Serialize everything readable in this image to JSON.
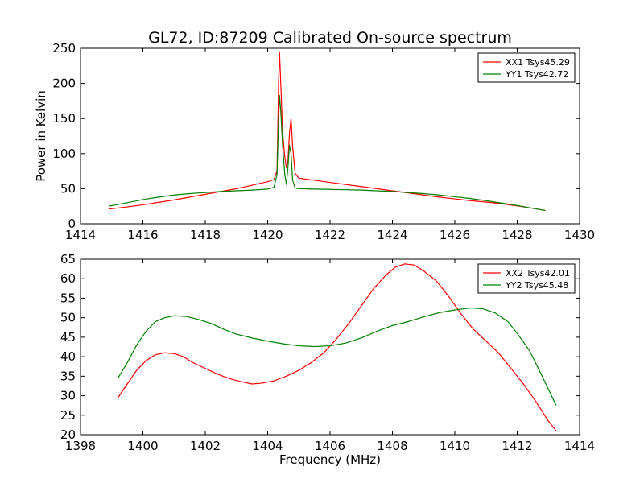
{
  "title": "GL72, ID:87209 Calibrated On-source spectrum",
  "colors": {
    "red": "#ff0000",
    "green": "#008000"
  },
  "chart_data": [
    {
      "type": "line",
      "xlabel": "",
      "ylabel": "Power in Kelvin",
      "xlim": [
        1414,
        1430
      ],
      "ylim": [
        0,
        250
      ],
      "xticks": [
        "1414",
        "1416",
        "1418",
        "1420",
        "1422",
        "1424",
        "1426",
        "1428",
        "1430"
      ],
      "yticks": [
        "0",
        "50",
        "100",
        "150",
        "200",
        "250"
      ],
      "legend_position": "top-right",
      "grid": false,
      "series": [
        {
          "name": "XX1 Tsys45.29",
          "color": "#ff0000",
          "points": [
            [
              1414.9,
              21
            ],
            [
              1415.5,
              24
            ],
            [
              1416,
              27
            ],
            [
              1416.5,
              30.5
            ],
            [
              1417,
              34
            ],
            [
              1417.5,
              38
            ],
            [
              1418,
              42
            ],
            [
              1418.5,
              46
            ],
            [
              1419,
              50
            ],
            [
              1419.5,
              55
            ],
            [
              1419.8,
              58
            ],
            [
              1420.0,
              60
            ],
            [
              1420.2,
              63
            ],
            [
              1420.3,
              75
            ],
            [
              1420.35,
              200
            ],
            [
              1420.38,
              245
            ],
            [
              1420.42,
              200
            ],
            [
              1420.48,
              130
            ],
            [
              1420.55,
              95
            ],
            [
              1420.6,
              80
            ],
            [
              1420.65,
              90
            ],
            [
              1420.7,
              130
            ],
            [
              1420.75,
              150
            ],
            [
              1420.8,
              110
            ],
            [
              1420.88,
              72
            ],
            [
              1421,
              65
            ],
            [
              1421.5,
              62
            ],
            [
              1422,
              59
            ],
            [
              1422.5,
              56
            ],
            [
              1423,
              53
            ],
            [
              1423.5,
              50
            ],
            [
              1424,
              47
            ],
            [
              1424.5,
              44
            ],
            [
              1425,
              41
            ],
            [
              1425.5,
              38
            ],
            [
              1426,
              35.5
            ],
            [
              1426.5,
              33
            ],
            [
              1427,
              31
            ],
            [
              1427.5,
              28.5
            ],
            [
              1428,
              25.5
            ],
            [
              1428.5,
              22
            ],
            [
              1428.9,
              19
            ]
          ]
        },
        {
          "name": "YY1 Tsys42.72",
          "color": "#008000",
          "points": [
            [
              1414.9,
              25
            ],
            [
              1415.5,
              30
            ],
            [
              1416,
              34.5
            ],
            [
              1416.5,
              38
            ],
            [
              1417,
              41
            ],
            [
              1417.5,
              43
            ],
            [
              1418,
              44.5
            ],
            [
              1418.5,
              46
            ],
            [
              1419,
              47
            ],
            [
              1419.5,
              48
            ],
            [
              1420.0,
              49.5
            ],
            [
              1420.2,
              52
            ],
            [
              1420.3,
              70
            ],
            [
              1420.35,
              150
            ],
            [
              1420.38,
              183
            ],
            [
              1420.42,
              160
            ],
            [
              1420.48,
              110
            ],
            [
              1420.55,
              70
            ],
            [
              1420.6,
              56
            ],
            [
              1420.65,
              80
            ],
            [
              1420.7,
              112
            ],
            [
              1420.75,
              100
            ],
            [
              1420.8,
              62
            ],
            [
              1420.88,
              51
            ],
            [
              1421,
              50
            ],
            [
              1421.5,
              49.5
            ],
            [
              1422,
              49
            ],
            [
              1422.5,
              48.5
            ],
            [
              1423,
              48
            ],
            [
              1423.5,
              47
            ],
            [
              1424,
              46
            ],
            [
              1424.5,
              44.5
            ],
            [
              1425,
              43
            ],
            [
              1425.5,
              41
            ],
            [
              1426,
              38.5
            ],
            [
              1426.5,
              36
            ],
            [
              1427,
              33
            ],
            [
              1427.5,
              29.5
            ],
            [
              1428,
              26
            ],
            [
              1428.5,
              22
            ],
            [
              1428.9,
              19
            ]
          ]
        }
      ]
    },
    {
      "type": "line",
      "xlabel": "Frequency (MHz)",
      "ylabel": "",
      "xlim": [
        1398,
        1414
      ],
      "ylim": [
        20,
        65
      ],
      "xticks": [
        "1398",
        "1400",
        "1402",
        "1404",
        "1406",
        "1408",
        "1410",
        "1412",
        "1414"
      ],
      "yticks": [
        "20",
        "25",
        "30",
        "35",
        "40",
        "45",
        "50",
        "55",
        "60",
        "65"
      ],
      "legend_position": "top-right",
      "grid": false,
      "series": [
        {
          "name": "XX2 Tsys42.01",
          "color": "#ff0000",
          "points": [
            [
              1399.2,
              29.5
            ],
            [
              1399.5,
              33
            ],
            [
              1399.8,
              36.5
            ],
            [
              1400.1,
              39
            ],
            [
              1400.4,
              40.5
            ],
            [
              1400.7,
              41
            ],
            [
              1401,
              40.8
            ],
            [
              1401.3,
              40
            ],
            [
              1401.6,
              38.5
            ],
            [
              1402,
              37
            ],
            [
              1402.4,
              35.5
            ],
            [
              1402.8,
              34.3
            ],
            [
              1403.2,
              33.5
            ],
            [
              1403.5,
              33
            ],
            [
              1403.8,
              33.2
            ],
            [
              1404.2,
              33.8
            ],
            [
              1404.6,
              35
            ],
            [
              1405,
              36.5
            ],
            [
              1405.4,
              38.5
            ],
            [
              1405.8,
              41
            ],
            [
              1406.2,
              44.5
            ],
            [
              1406.6,
              48.5
            ],
            [
              1407,
              53
            ],
            [
              1407.4,
              57.5
            ],
            [
              1407.8,
              61
            ],
            [
              1408.1,
              63
            ],
            [
              1408.4,
              63.8
            ],
            [
              1408.7,
              63.5
            ],
            [
              1409,
              62
            ],
            [
              1409.4,
              59.5
            ],
            [
              1409.8,
              55.5
            ],
            [
              1410.2,
              51
            ],
            [
              1410.6,
              47
            ],
            [
              1411,
              44
            ],
            [
              1411.4,
              41
            ],
            [
              1411.8,
              37
            ],
            [
              1412.2,
              33
            ],
            [
              1412.6,
              28.5
            ],
            [
              1413,
              23.5
            ],
            [
              1413.25,
              21
            ]
          ]
        },
        {
          "name": "YY2 Tsys45.48",
          "color": "#008000",
          "points": [
            [
              1399.2,
              34.5
            ],
            [
              1399.5,
              38.5
            ],
            [
              1399.8,
              43
            ],
            [
              1400.1,
              46.5
            ],
            [
              1400.4,
              49
            ],
            [
              1400.7,
              50
            ],
            [
              1401,
              50.5
            ],
            [
              1401.4,
              50.3
            ],
            [
              1401.8,
              49.5
            ],
            [
              1402.2,
              48.5
            ],
            [
              1402.6,
              47
            ],
            [
              1403,
              45.8
            ],
            [
              1403.5,
              44.8
            ],
            [
              1404,
              44
            ],
            [
              1404.5,
              43.3
            ],
            [
              1405,
              42.8
            ],
            [
              1405.5,
              42.6
            ],
            [
              1406,
              42.8
            ],
            [
              1406.5,
              43.5
            ],
            [
              1407,
              44.8
            ],
            [
              1407.5,
              46.5
            ],
            [
              1408,
              48
            ],
            [
              1408.5,
              49
            ],
            [
              1409,
              50.2
            ],
            [
              1409.5,
              51.3
            ],
            [
              1410,
              52
            ],
            [
              1410.5,
              52.5
            ],
            [
              1410.9,
              52.3
            ],
            [
              1411.3,
              51.2
            ],
            [
              1411.7,
              49
            ],
            [
              1412,
              46
            ],
            [
              1412.4,
              41.5
            ],
            [
              1412.8,
              35
            ],
            [
              1413.1,
              30
            ],
            [
              1413.25,
              27.5
            ]
          ]
        }
      ]
    }
  ]
}
